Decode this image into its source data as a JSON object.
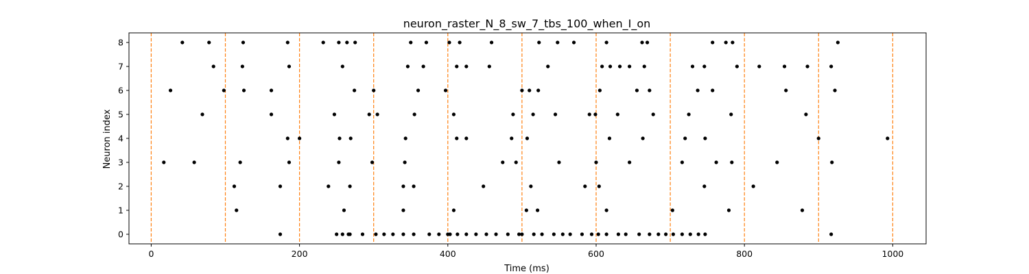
{
  "chart_data": {
    "type": "scatter",
    "title": "neuron_raster_N_8_sw_7_tbs_100_when_I_on",
    "xlabel": "Time (ms)",
    "ylabel": "Neuron index",
    "xlim": [
      -30,
      1045
    ],
    "ylim": [
      -0.4,
      8.4
    ],
    "xticks": [
      0,
      200,
      400,
      600,
      800,
      1000
    ],
    "yticks": [
      0,
      1,
      2,
      3,
      4,
      5,
      6,
      7,
      8
    ],
    "grid": false,
    "legend": "none",
    "marker_color": "#000000",
    "vline_color": "#ff7f0e",
    "vlines": [
      0,
      100,
      200,
      300,
      400,
      500,
      600,
      700,
      800,
      900,
      1000
    ],
    "spikes": [
      {
        "neuron": 0,
        "times": [
          174,
          250,
          258,
          266,
          268,
          285,
          303,
          314,
          326,
          340,
          354,
          375,
          388,
          400,
          403,
          413,
          425,
          438,
          452,
          465,
          481,
          496,
          500,
          516,
          527,
          543,
          555,
          565,
          581,
          594,
          603,
          614,
          630,
          640,
          658,
          672,
          684,
          694,
          704,
          716,
          727,
          738,
          747,
          917
        ]
      },
      {
        "neuron": 1,
        "times": [
          115,
          260,
          340,
          408,
          506,
          521,
          614,
          703,
          779,
          878
        ]
      },
      {
        "neuron": 2,
        "times": [
          112,
          174,
          239,
          268,
          340,
          354,
          448,
          512,
          585,
          604,
          746,
          812
        ]
      },
      {
        "neuron": 3,
        "times": [
          17,
          58,
          120,
          186,
          253,
          298,
          342,
          474,
          492,
          550,
          600,
          645,
          716,
          762,
          783,
          844,
          918
        ]
      },
      {
        "neuron": 4,
        "times": [
          184,
          200,
          254,
          269,
          343,
          412,
          425,
          486,
          507,
          618,
          663,
          720,
          747,
          900,
          993
        ]
      },
      {
        "neuron": 5,
        "times": [
          69,
          162,
          247,
          294,
          305,
          355,
          408,
          488,
          515,
          545,
          591,
          599,
          629,
          677,
          725,
          782,
          883
        ]
      },
      {
        "neuron": 6,
        "times": [
          26,
          98,
          125,
          162,
          274,
          300,
          360,
          397,
          500,
          510,
          522,
          605,
          655,
          672,
          737,
          757,
          856,
          922
        ]
      },
      {
        "neuron": 7,
        "times": [
          84,
          123,
          186,
          258,
          346,
          367,
          412,
          425,
          456,
          535,
          608,
          619,
          632,
          645,
          665,
          730,
          746,
          790,
          820,
          854,
          885,
          917
        ]
      },
      {
        "neuron": 8,
        "times": [
          42,
          78,
          124,
          184,
          232,
          253,
          264,
          275,
          350,
          371,
          402,
          416,
          459,
          523,
          548,
          570,
          614,
          662,
          669,
          757,
          775,
          784,
          926
        ]
      }
    ]
  }
}
